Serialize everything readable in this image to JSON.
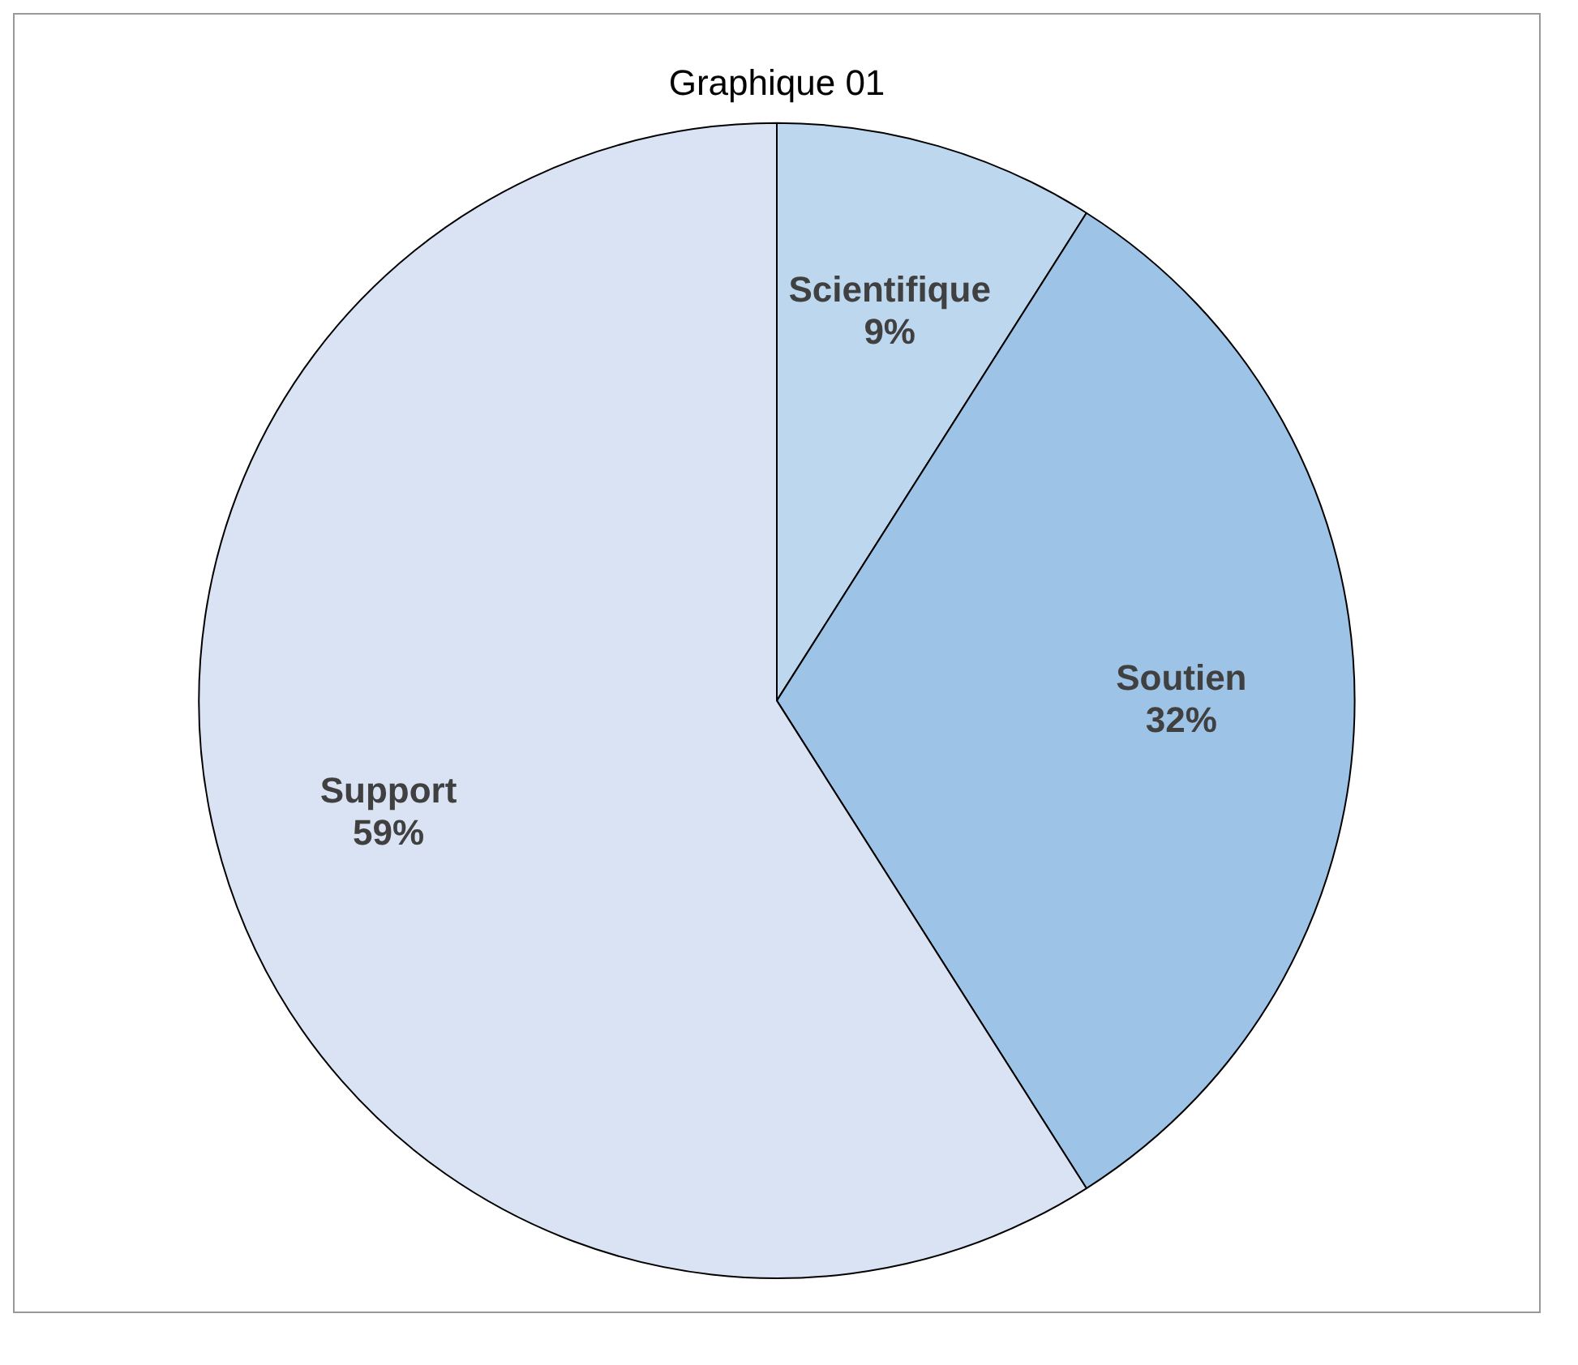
{
  "chart_data": {
    "type": "pie",
    "title": "Graphique 01",
    "categories": [
      "Scientifique",
      "Soutien",
      "Support"
    ],
    "values": [
      9,
      32,
      59
    ],
    "value_labels": [
      "9%",
      "32%",
      "59%"
    ],
    "colors": [
      "#bdd7ee",
      "#9dc3e6",
      "#dae3f3"
    ],
    "legend": false
  }
}
